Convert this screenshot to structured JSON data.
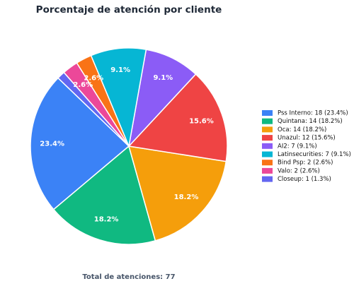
{
  "chart_data": {
    "type": "pie",
    "title": "Porcentaje de atención por cliente",
    "categories": [
      "Pss Interno: 18 (23.4%)",
      "Quintana: 14 (18.2%)",
      "Oca: 14 (18.2%)",
      "Unazul: 12 (15.6%)",
      "AI2: 7 (9.1%)",
      "Latinsecurities: 7 (9.1%)",
      "Bind Psp: 2 (2.6%)",
      "Valo: 2 (2.6%)",
      "Closeup: 1 (1.3%)"
    ],
    "values": [
      23.4,
      18.2,
      18.2,
      15.6,
      9.1,
      9.1,
      2.6,
      2.6,
      1.3
    ],
    "value_labels": [
      "23.4%",
      "18.2%",
      "18.2%",
      "15.6%",
      "9.1%",
      "9.1%",
      "2.6%",
      "2.6%",
      null
    ],
    "colors": [
      "#3b82f6",
      "#10b981",
      "#f59e0b",
      "#ef4444",
      "#8b5cf6",
      "#06b6d4",
      "#f97316",
      "#ec4899",
      "#6366f1"
    ],
    "legend": "right",
    "footer": "Total de atenciones: 77"
  }
}
